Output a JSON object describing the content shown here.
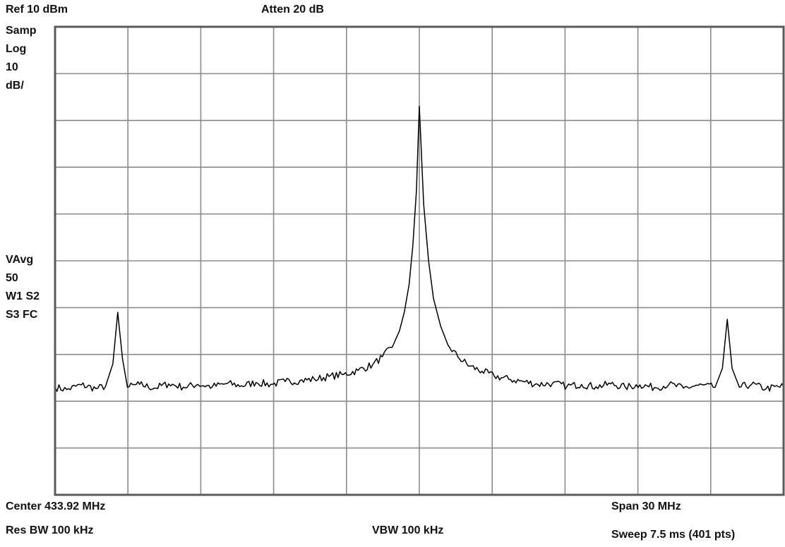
{
  "header": {
    "ref": "Ref 10 dBm",
    "atten": "Atten 20 dB"
  },
  "left_panel": {
    "detector": "Samp",
    "scale_type": "Log",
    "scale_value": "10",
    "scale_unit": "dB/",
    "vavg": "VAvg",
    "vavg_count": "50",
    "trace_line1": "W1 S2",
    "trace_line2": "S3 FC"
  },
  "footer": {
    "center": "Center 433.92 MHz",
    "span": "Span 30 MHz",
    "rbw": "Res BW 100 kHz",
    "vbw": "VBW 100 kHz",
    "sweep": "Sweep 7.5 ms (401 pts)"
  },
  "chart_data": {
    "type": "line",
    "x_unit": "MHz",
    "y_unit": "dBm",
    "xlim": [
      418.92,
      448.92
    ],
    "ylim": [
      -90,
      10
    ],
    "grid": true,
    "x_divisions": 10,
    "y_divisions": 10,
    "trace_color": "#000000",
    "series": [
      {
        "points": [
          [
            418.92,
            -67.0
          ],
          [
            419.4,
            -67.5
          ],
          [
            420.0,
            -66.5
          ],
          [
            420.6,
            -67.3
          ],
          [
            421.0,
            -66.8
          ],
          [
            421.3,
            -62.0
          ],
          [
            421.5,
            -51.0
          ],
          [
            421.7,
            -61.0
          ],
          [
            421.9,
            -67.0
          ],
          [
            422.4,
            -66.4
          ],
          [
            423.0,
            -67.2
          ],
          [
            423.6,
            -66.3
          ],
          [
            424.2,
            -67.0
          ],
          [
            424.8,
            -66.4
          ],
          [
            425.4,
            -66.9
          ],
          [
            426.0,
            -66.2
          ],
          [
            426.6,
            -66.7
          ],
          [
            427.2,
            -66.0
          ],
          [
            427.8,
            -66.4
          ],
          [
            428.4,
            -65.8
          ],
          [
            429.0,
            -65.6
          ],
          [
            429.6,
            -65.3
          ],
          [
            430.2,
            -64.7
          ],
          [
            430.8,
            -64.3
          ],
          [
            431.4,
            -63.4
          ],
          [
            432.0,
            -62.2
          ],
          [
            432.4,
            -60.5
          ],
          [
            432.8,
            -58.5
          ],
          [
            433.1,
            -55.0
          ],
          [
            433.3,
            -51.0
          ],
          [
            433.5,
            -45.0
          ],
          [
            433.65,
            -37.0
          ],
          [
            433.8,
            -25.0
          ],
          [
            433.9,
            -10.0
          ],
          [
            433.92,
            -7.0
          ],
          [
            433.98,
            -14.0
          ],
          [
            434.1,
            -28.0
          ],
          [
            434.3,
            -40.0
          ],
          [
            434.5,
            -48.0
          ],
          [
            434.8,
            -54.0
          ],
          [
            435.1,
            -58.0
          ],
          [
            435.5,
            -60.5
          ],
          [
            436.0,
            -62.5
          ],
          [
            436.5,
            -63.6
          ],
          [
            437.0,
            -64.6
          ],
          [
            437.6,
            -65.3
          ],
          [
            438.2,
            -65.8
          ],
          [
            438.8,
            -66.4
          ],
          [
            439.4,
            -66.2
          ],
          [
            440.0,
            -66.8
          ],
          [
            440.6,
            -66.4
          ],
          [
            441.2,
            -66.9
          ],
          [
            441.8,
            -66.3
          ],
          [
            442.4,
            -67.0
          ],
          [
            443.0,
            -66.5
          ],
          [
            443.6,
            -67.1
          ],
          [
            444.2,
            -66.4
          ],
          [
            444.8,
            -67.2
          ],
          [
            445.4,
            -66.6
          ],
          [
            446.1,
            -67.0
          ],
          [
            446.4,
            -63.0
          ],
          [
            446.6,
            -52.5
          ],
          [
            446.8,
            -63.0
          ],
          [
            447.1,
            -67.0
          ],
          [
            447.6,
            -66.4
          ],
          [
            448.2,
            -67.3
          ],
          [
            448.92,
            -66.8
          ]
        ]
      }
    ]
  }
}
